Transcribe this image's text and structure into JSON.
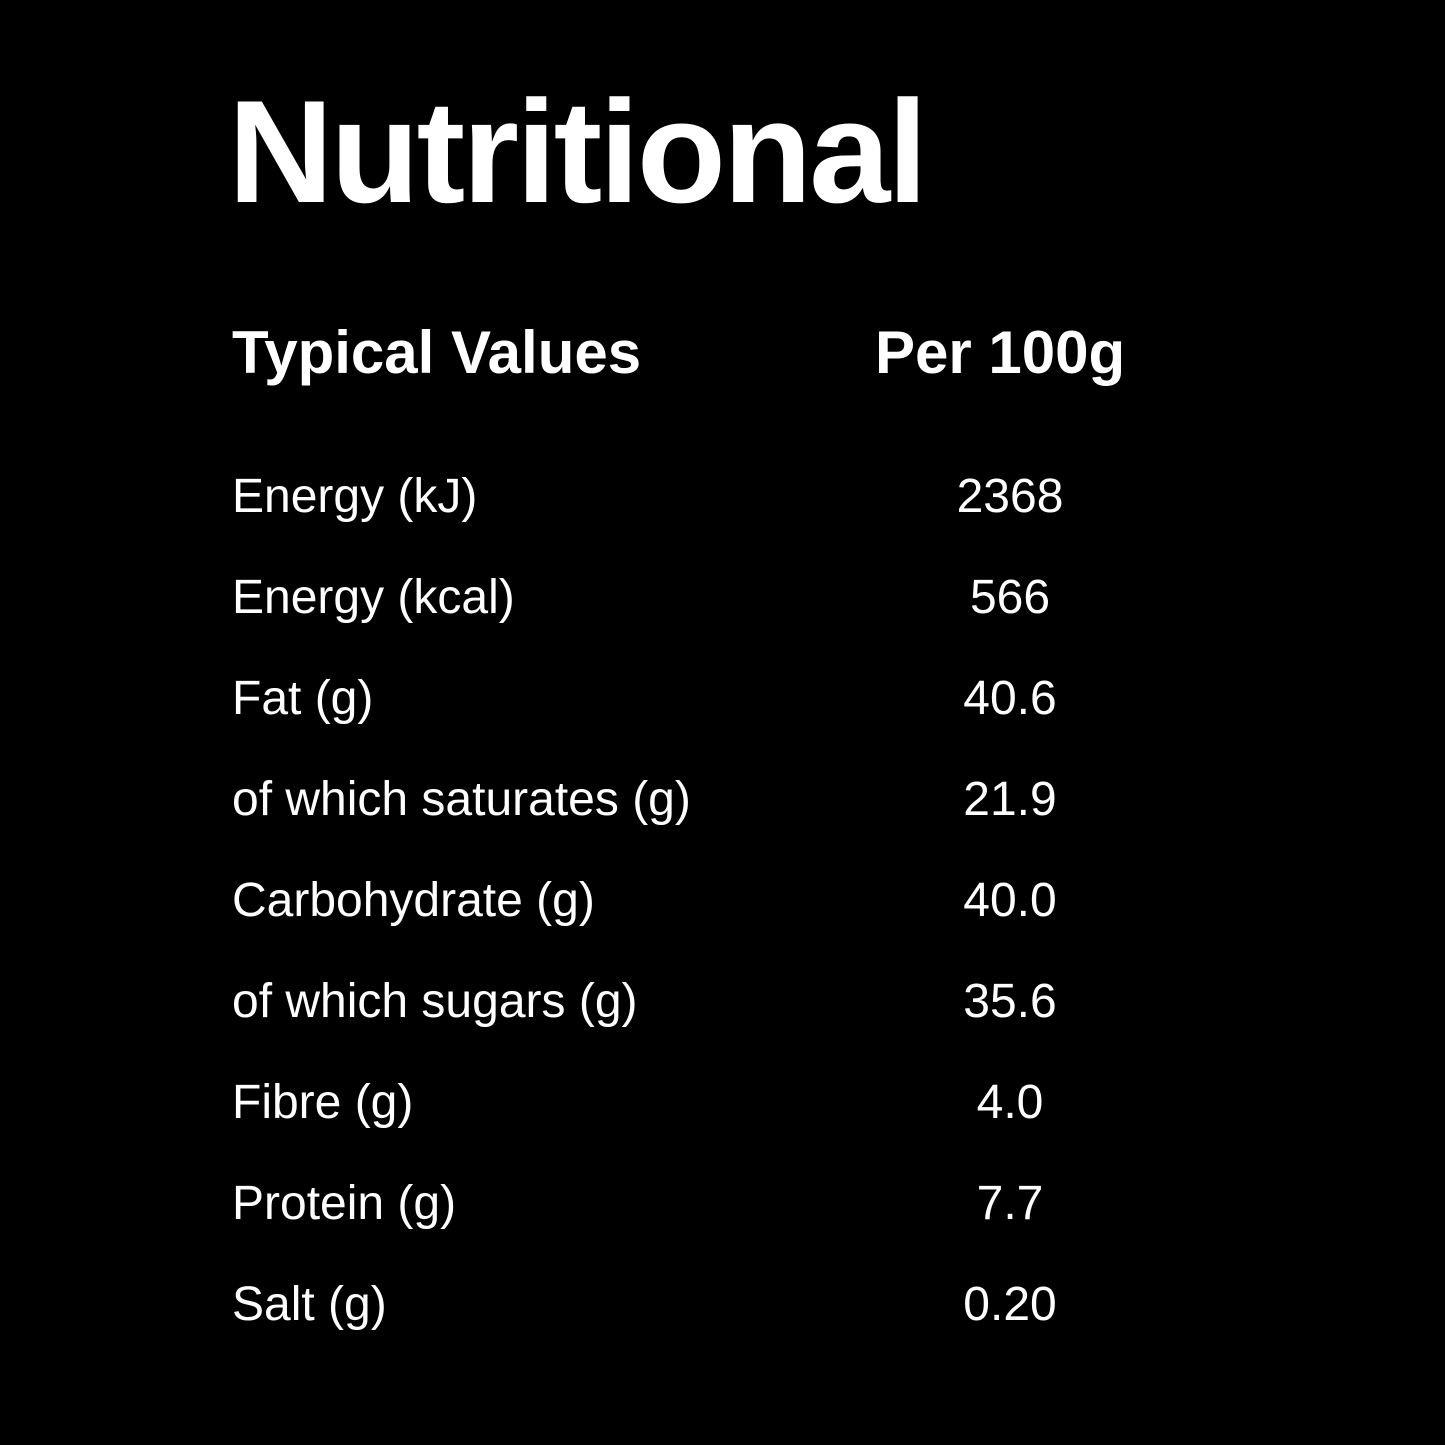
{
  "title": "Nutritional",
  "table": {
    "header": [
      "Typical Values",
      "Per 100g"
    ],
    "rows": [
      [
        "Energy (kJ)",
        "2368"
      ],
      [
        "Energy (kcal)",
        "566"
      ],
      [
        "Fat (g)",
        "40.6"
      ],
      [
        "of which saturates (g)",
        "21.9"
      ],
      [
        "Carbohydrate (g)",
        "40.0"
      ],
      [
        "of which sugars (g)",
        "35.6"
      ],
      [
        "Fibre (g)",
        "4.0"
      ],
      [
        "Protein (g)",
        "7.7"
      ],
      [
        "Salt (g)",
        "0.20"
      ]
    ]
  }
}
